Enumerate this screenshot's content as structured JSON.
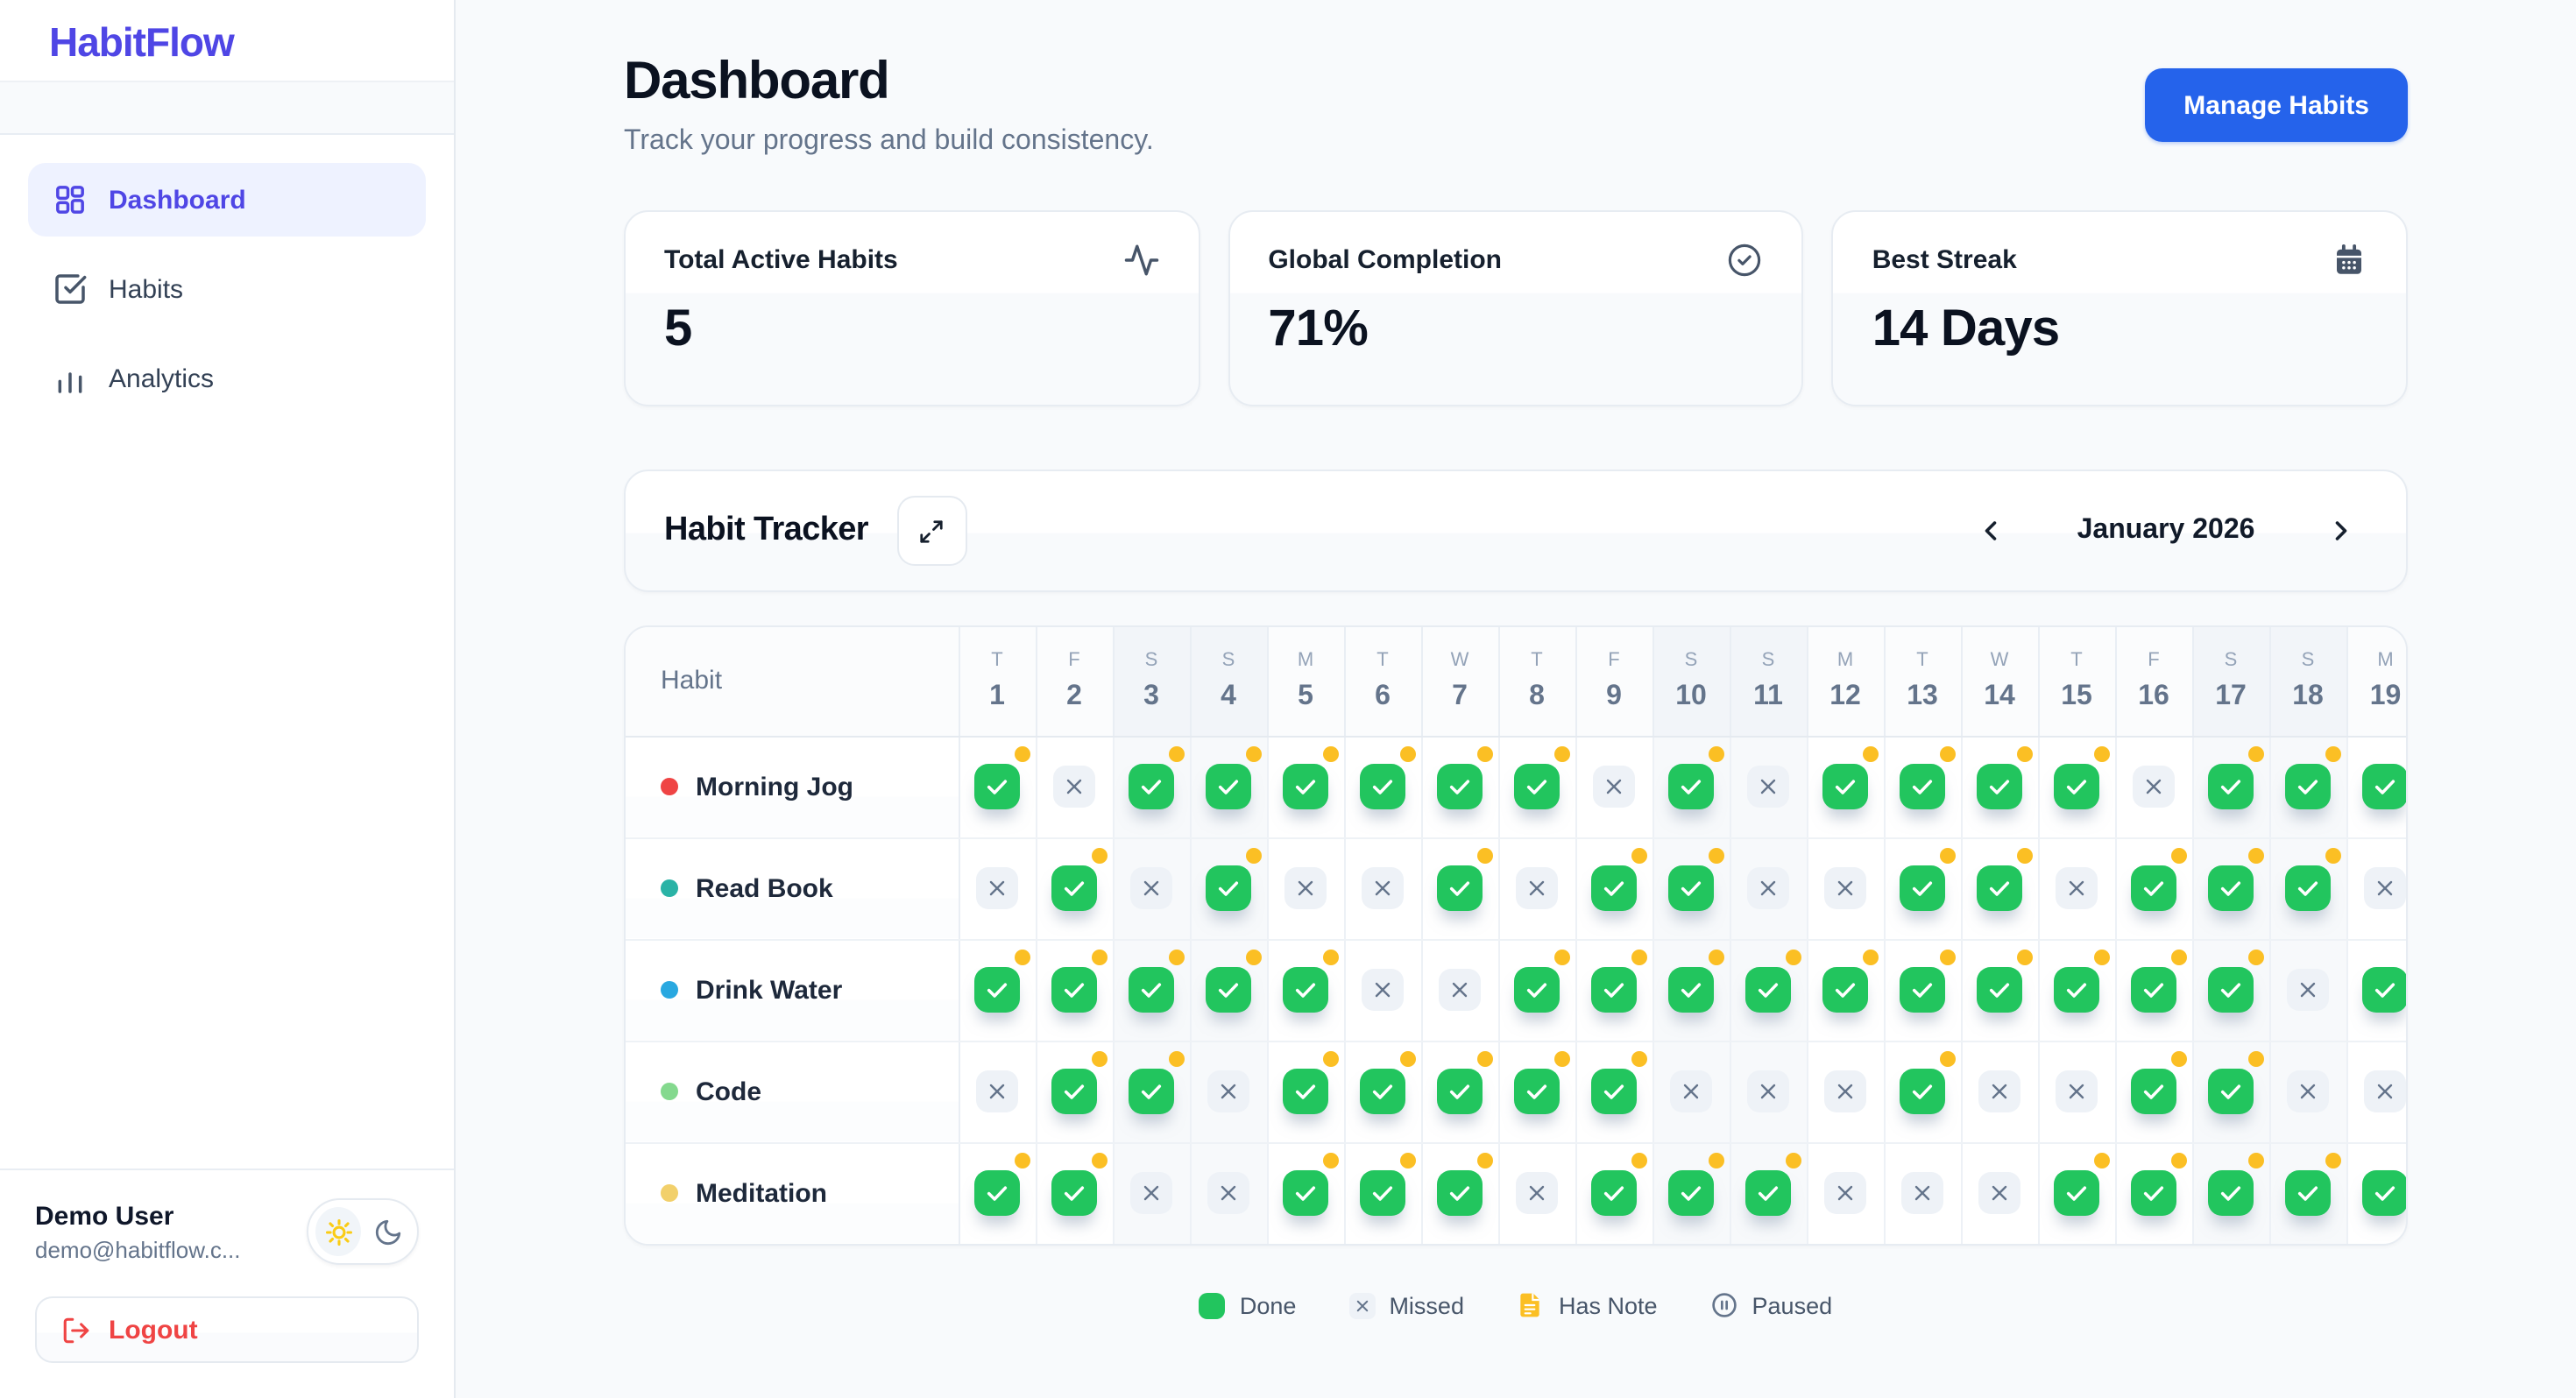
{
  "app": {
    "name": "HabitFlow"
  },
  "colors": {
    "brand": "#4f46e5",
    "button": "#2563eb",
    "done": "#22c55e",
    "note": "#fbbf24",
    "missedbg": "#eef2f7",
    "danger": "#ef4444"
  },
  "sidebar": {
    "nav": [
      {
        "label": "Dashboard",
        "icon": "dashboard-grid-icon",
        "active": true
      },
      {
        "label": "Habits",
        "icon": "check-square-icon",
        "active": false
      },
      {
        "label": "Analytics",
        "icon": "bar-chart-icon",
        "active": false
      }
    ],
    "user": {
      "name": "Demo User",
      "email": "demo@habitflow.c...",
      "logout_label": "Logout"
    },
    "theme": {
      "active": "light",
      "options": [
        "light",
        "dark"
      ]
    }
  },
  "header": {
    "title": "Dashboard",
    "subtitle": "Track your progress and build consistency.",
    "manage_button": "Manage Habits"
  },
  "stats": [
    {
      "label": "Total Active Habits",
      "value": "5",
      "icon": "activity-icon"
    },
    {
      "label": "Global Completion",
      "value": "71%",
      "icon": "check-circle-icon"
    },
    {
      "label": "Best Streak",
      "value": "14 Days",
      "icon": "calendar-icon"
    }
  ],
  "tracker": {
    "title": "Habit Tracker",
    "month": "January 2026",
    "habit_column_header": "Habit",
    "days": [
      {
        "dow": "T",
        "num": "1",
        "weekend": false
      },
      {
        "dow": "F",
        "num": "2",
        "weekend": false
      },
      {
        "dow": "S",
        "num": "3",
        "weekend": true
      },
      {
        "dow": "S",
        "num": "4",
        "weekend": true
      },
      {
        "dow": "M",
        "num": "5",
        "weekend": false
      },
      {
        "dow": "T",
        "num": "6",
        "weekend": false
      },
      {
        "dow": "W",
        "num": "7",
        "weekend": false
      },
      {
        "dow": "T",
        "num": "8",
        "weekend": false
      },
      {
        "dow": "F",
        "num": "9",
        "weekend": false
      },
      {
        "dow": "S",
        "num": "10",
        "weekend": true
      },
      {
        "dow": "S",
        "num": "11",
        "weekend": true
      },
      {
        "dow": "M",
        "num": "12",
        "weekend": false
      },
      {
        "dow": "T",
        "num": "13",
        "weekend": false
      },
      {
        "dow": "W",
        "num": "14",
        "weekend": false
      },
      {
        "dow": "T",
        "num": "15",
        "weekend": false
      },
      {
        "dow": "F",
        "num": "16",
        "weekend": false
      },
      {
        "dow": "S",
        "num": "17",
        "weekend": true
      },
      {
        "dow": "S",
        "num": "18",
        "weekend": true
      },
      {
        "dow": "M",
        "num": "19",
        "weekend": false
      }
    ],
    "habits": [
      {
        "name": "Morning Jog",
        "color": "#ef4444",
        "cells": [
          "dn",
          "x",
          "dn",
          "dn",
          "dn",
          "dn",
          "dn",
          "dn",
          "x",
          "dn",
          "x",
          "dn",
          "dn",
          "dn",
          "dn",
          "x",
          "dn",
          "dn",
          "d"
        ]
      },
      {
        "name": "Read Book",
        "color": "#2ab3a6",
        "cells": [
          "x",
          "dn",
          "x",
          "dn",
          "x",
          "x",
          "dn",
          "x",
          "dn",
          "dn",
          "x",
          "x",
          "dn",
          "dn",
          "x",
          "dn",
          "dn",
          "dn",
          "x"
        ]
      },
      {
        "name": "Drink Water",
        "color": "#29a8e0",
        "cells": [
          "dn",
          "dn",
          "dn",
          "dn",
          "dn",
          "x",
          "x",
          "dn",
          "dn",
          "dn",
          "dn",
          "dn",
          "dn",
          "dn",
          "dn",
          "dn",
          "dn",
          "x",
          "d"
        ]
      },
      {
        "name": "Code",
        "color": "#84d98e",
        "cells": [
          "x",
          "dn",
          "dn",
          "x",
          "dn",
          "dn",
          "dn",
          "dn",
          "dn",
          "x",
          "x",
          "x",
          "dn",
          "x",
          "x",
          "dn",
          "dn",
          "x",
          "x"
        ]
      },
      {
        "name": "Meditation",
        "color": "#f2d06b",
        "cells": [
          "dn",
          "dn",
          "x",
          "x",
          "dn",
          "dn",
          "dn",
          "x",
          "dn",
          "dn",
          "dn",
          "x",
          "x",
          "x",
          "dn",
          "dn",
          "dn",
          "dn",
          "d"
        ]
      }
    ],
    "legend": [
      {
        "label": "Done",
        "type": "done"
      },
      {
        "label": "Missed",
        "type": "missed"
      },
      {
        "label": "Has Note",
        "type": "note"
      },
      {
        "label": "Paused",
        "type": "paused"
      }
    ]
  }
}
